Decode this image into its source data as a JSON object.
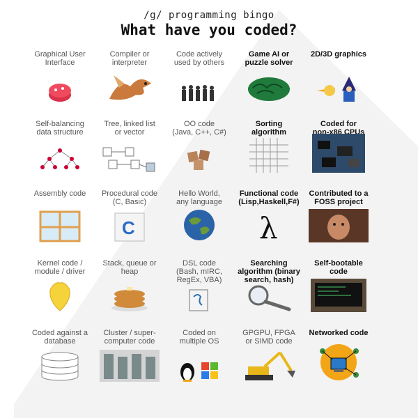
{
  "header": {
    "subtitle": "/g/ programming bingo",
    "title": "What have you coded?"
  },
  "cells": [
    {
      "label": "Graphical User\nInterface",
      "icon": "gui-icon"
    },
    {
      "label": "Compiler or\ninterpreter",
      "icon": "dragon-icon"
    },
    {
      "label": "Code actively\nused by others",
      "icon": "crowd-icon"
    },
    {
      "label": "Game AI or\npuzzle solver",
      "icon": "brain-icon"
    },
    {
      "label": "2D/3D graphics",
      "icon": "wizard-icon"
    },
    {
      "label": "Self-balancing\ndata structure",
      "icon": "tree-structure-icon"
    },
    {
      "label": "Tree, linked list\nor vector",
      "icon": "linked-list-icon"
    },
    {
      "label": "OO code\n(Java, C++, C#)",
      "icon": "objects-icon"
    },
    {
      "label": "Sorting\nalgorithm",
      "icon": "sorting-grid-icon"
    },
    {
      "label": "Coded for\nnon-x86 CPUs",
      "icon": "cpu-collage-icon"
    },
    {
      "label": "Assembly code",
      "icon": "window-icon"
    },
    {
      "label": "Procedural code\n(C, Basic)",
      "icon": "c-book-icon"
    },
    {
      "label": "Hello World,\nany language",
      "icon": "globe-icon"
    },
    {
      "label": "Functional code\n(Lisp,Haskell,F#)",
      "icon": "lambda-icon"
    },
    {
      "label": "Contributed to a\nFOSS project",
      "icon": "photo-icon"
    },
    {
      "label": "Kernel code /\nmodule / driver",
      "icon": "corn-kernel-icon"
    },
    {
      "label": "Stack, queue or\nheap",
      "icon": "pancakes-icon"
    },
    {
      "label": "DSL code\n(Bash, mIRC,\nRegEx, VBA)",
      "icon": "script-doc-icon"
    },
    {
      "label": "Searching\nalgorithm (binary\nsearch, hash)",
      "icon": "magnifier-icon"
    },
    {
      "label": "Self-bootable\ncode",
      "icon": "terminal-icon"
    },
    {
      "label": "Coded against a\ndatabase",
      "icon": "database-icon"
    },
    {
      "label": "Cluster / super-\ncomputer code",
      "icon": "server-room-icon"
    },
    {
      "label": "Coded on\nmultiple OS",
      "icon": "os-logos-icon"
    },
    {
      "label": "GPGPU, FPGA\nor SIMD code",
      "icon": "excavator-icon"
    },
    {
      "label": "Networked code",
      "icon": "network-icon"
    }
  ],
  "checked": [
    3,
    4,
    8,
    9,
    13,
    14,
    18,
    19,
    24
  ]
}
